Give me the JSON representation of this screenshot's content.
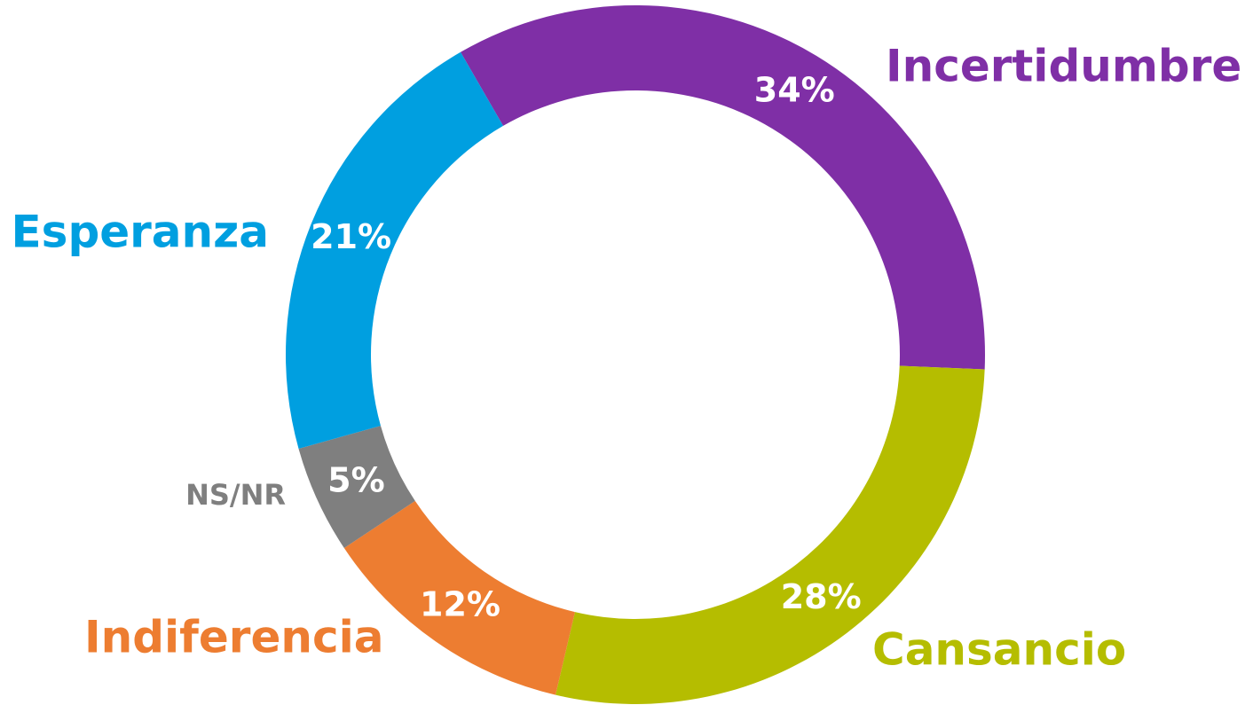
{
  "chart_data": {
    "type": "donut",
    "categories": [
      "Incertidumbre",
      "Cansancio",
      "Indiferencia",
      "NS/NR",
      "Esperanza"
    ],
    "values": [
      34,
      28,
      12,
      5,
      21
    ],
    "value_labels": [
      "34%",
      "28%",
      "12%",
      "5%",
      "21%"
    ],
    "colors": [
      "#7f2fa6",
      "#b5bd00",
      "#ed7d31",
      "#7f7f7f",
      "#009fe0"
    ]
  }
}
